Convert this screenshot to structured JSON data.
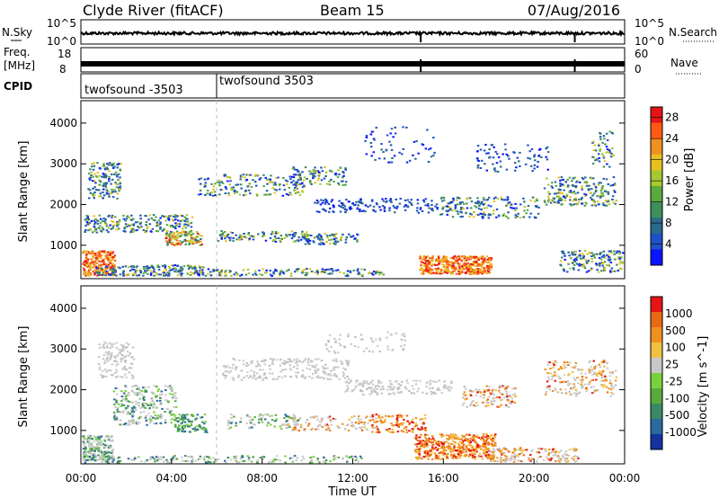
{
  "header": {
    "title": "Clyde River (fitACF)",
    "beam": "Beam 15",
    "date": "07/Aug/2016"
  },
  "chart_data": [
    {
      "type": "line",
      "panel": "noise",
      "left_label": "N.Sky",
      "right_label": "N.Search",
      "yticks_left": [
        "10^5",
        "10^0"
      ],
      "yticks_right": [
        "10^5",
        "10^0"
      ]
    },
    {
      "type": "line",
      "panel": "frequency",
      "ylabel_top": "Freq.",
      "ylabel_unit": "[MHz]",
      "right_label": "Nave",
      "yticks_left": [
        "18",
        "8"
      ],
      "yticks_right": [
        "60",
        "0"
      ],
      "ylim": [
        8,
        18
      ]
    },
    {
      "type": "table",
      "panel": "cpid",
      "label": "CPID",
      "segments": [
        {
          "name": "twofsound -3503",
          "start_hour": 0,
          "end_hour": 6
        },
        {
          "name": "twofsound 3503",
          "start_hour": 6,
          "end_hour": 24
        }
      ]
    },
    {
      "type": "heatmap",
      "panel": "power",
      "ylabel": "Slant Range [km]",
      "yticks": [
        "1000",
        "2000",
        "3000",
        "4000"
      ],
      "ylim": [
        180,
        4550
      ],
      "colorbar_label": "Power [dB]",
      "colorbar_ticks": [
        "4",
        "8",
        "12",
        "16",
        "20",
        "24",
        "28"
      ],
      "colorbar_range": [
        0,
        30
      ],
      "colors": [
        "#0a14ff",
        "#1e50c8",
        "#2a6a8a",
        "#3e8f5c",
        "#5aaa3c",
        "#a8c830",
        "#e8c020",
        "#f09020",
        "#ff5a14",
        "#e61414"
      ]
    },
    {
      "type": "heatmap",
      "panel": "velocity",
      "ylabel": "Slant Range [km]",
      "yticks": [
        "1000",
        "2000",
        "3000",
        "4000"
      ],
      "ylim": [
        180,
        4550
      ],
      "colorbar_label": "Velocity [m s^-1]",
      "colorbar_ticks": [
        "1000",
        "500",
        "100",
        "25",
        "-25",
        "-100",
        "-500",
        "-1000"
      ],
      "colors": [
        "#1432a0",
        "#2a6aa0",
        "#3a8a6a",
        "#5aaa3c",
        "#78d23c",
        "#c8c8c8",
        "#f0c040",
        "#f09020",
        "#e86a14",
        "#e61414"
      ]
    }
  ],
  "xaxis": {
    "ticks": [
      "00:00",
      "04:00",
      "08:00",
      "12:00",
      "16:00",
      "20:00",
      "00:00"
    ],
    "label": "Time UT"
  }
}
